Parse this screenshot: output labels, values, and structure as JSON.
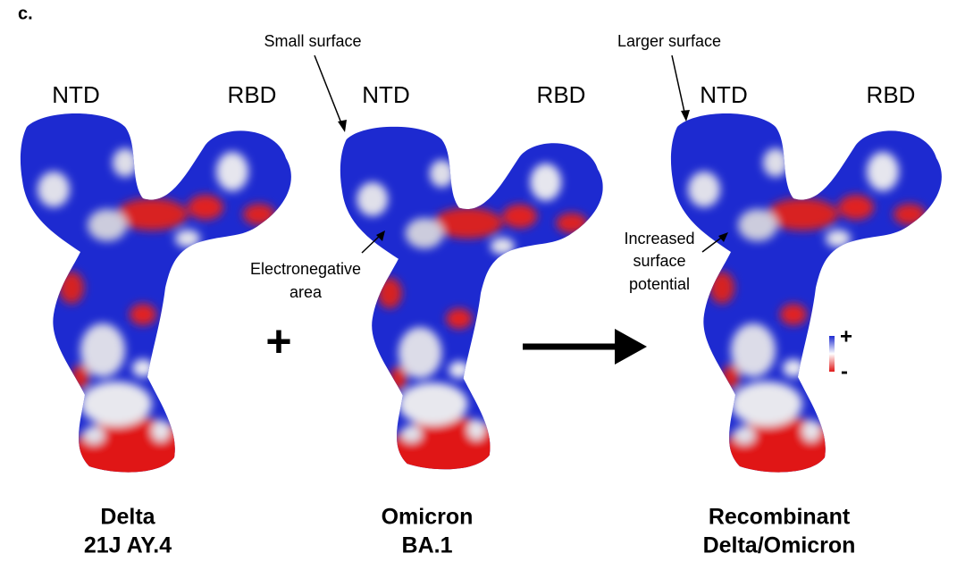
{
  "panel_label": "c.",
  "structures": [
    {
      "ntd": "NTD",
      "rbd": "RBD",
      "name": [
        "Delta",
        "21J AY.4"
      ]
    },
    {
      "ntd": "NTD",
      "rbd": "RBD",
      "name": [
        "Omicron",
        "BA.1"
      ]
    },
    {
      "ntd": "NTD",
      "rbd": "RBD",
      "name": [
        "Recombinant",
        "Delta/Omicron"
      ]
    }
  ],
  "annotations": {
    "small_surface": "Small surface",
    "electronegative": [
      "Electronegative",
      "area"
    ],
    "larger_surface": "Larger surface",
    "increased": [
      "Increased",
      "surface",
      "potential"
    ]
  },
  "operator": "+",
  "legend": {
    "plus": "+",
    "minus": "-"
  }
}
